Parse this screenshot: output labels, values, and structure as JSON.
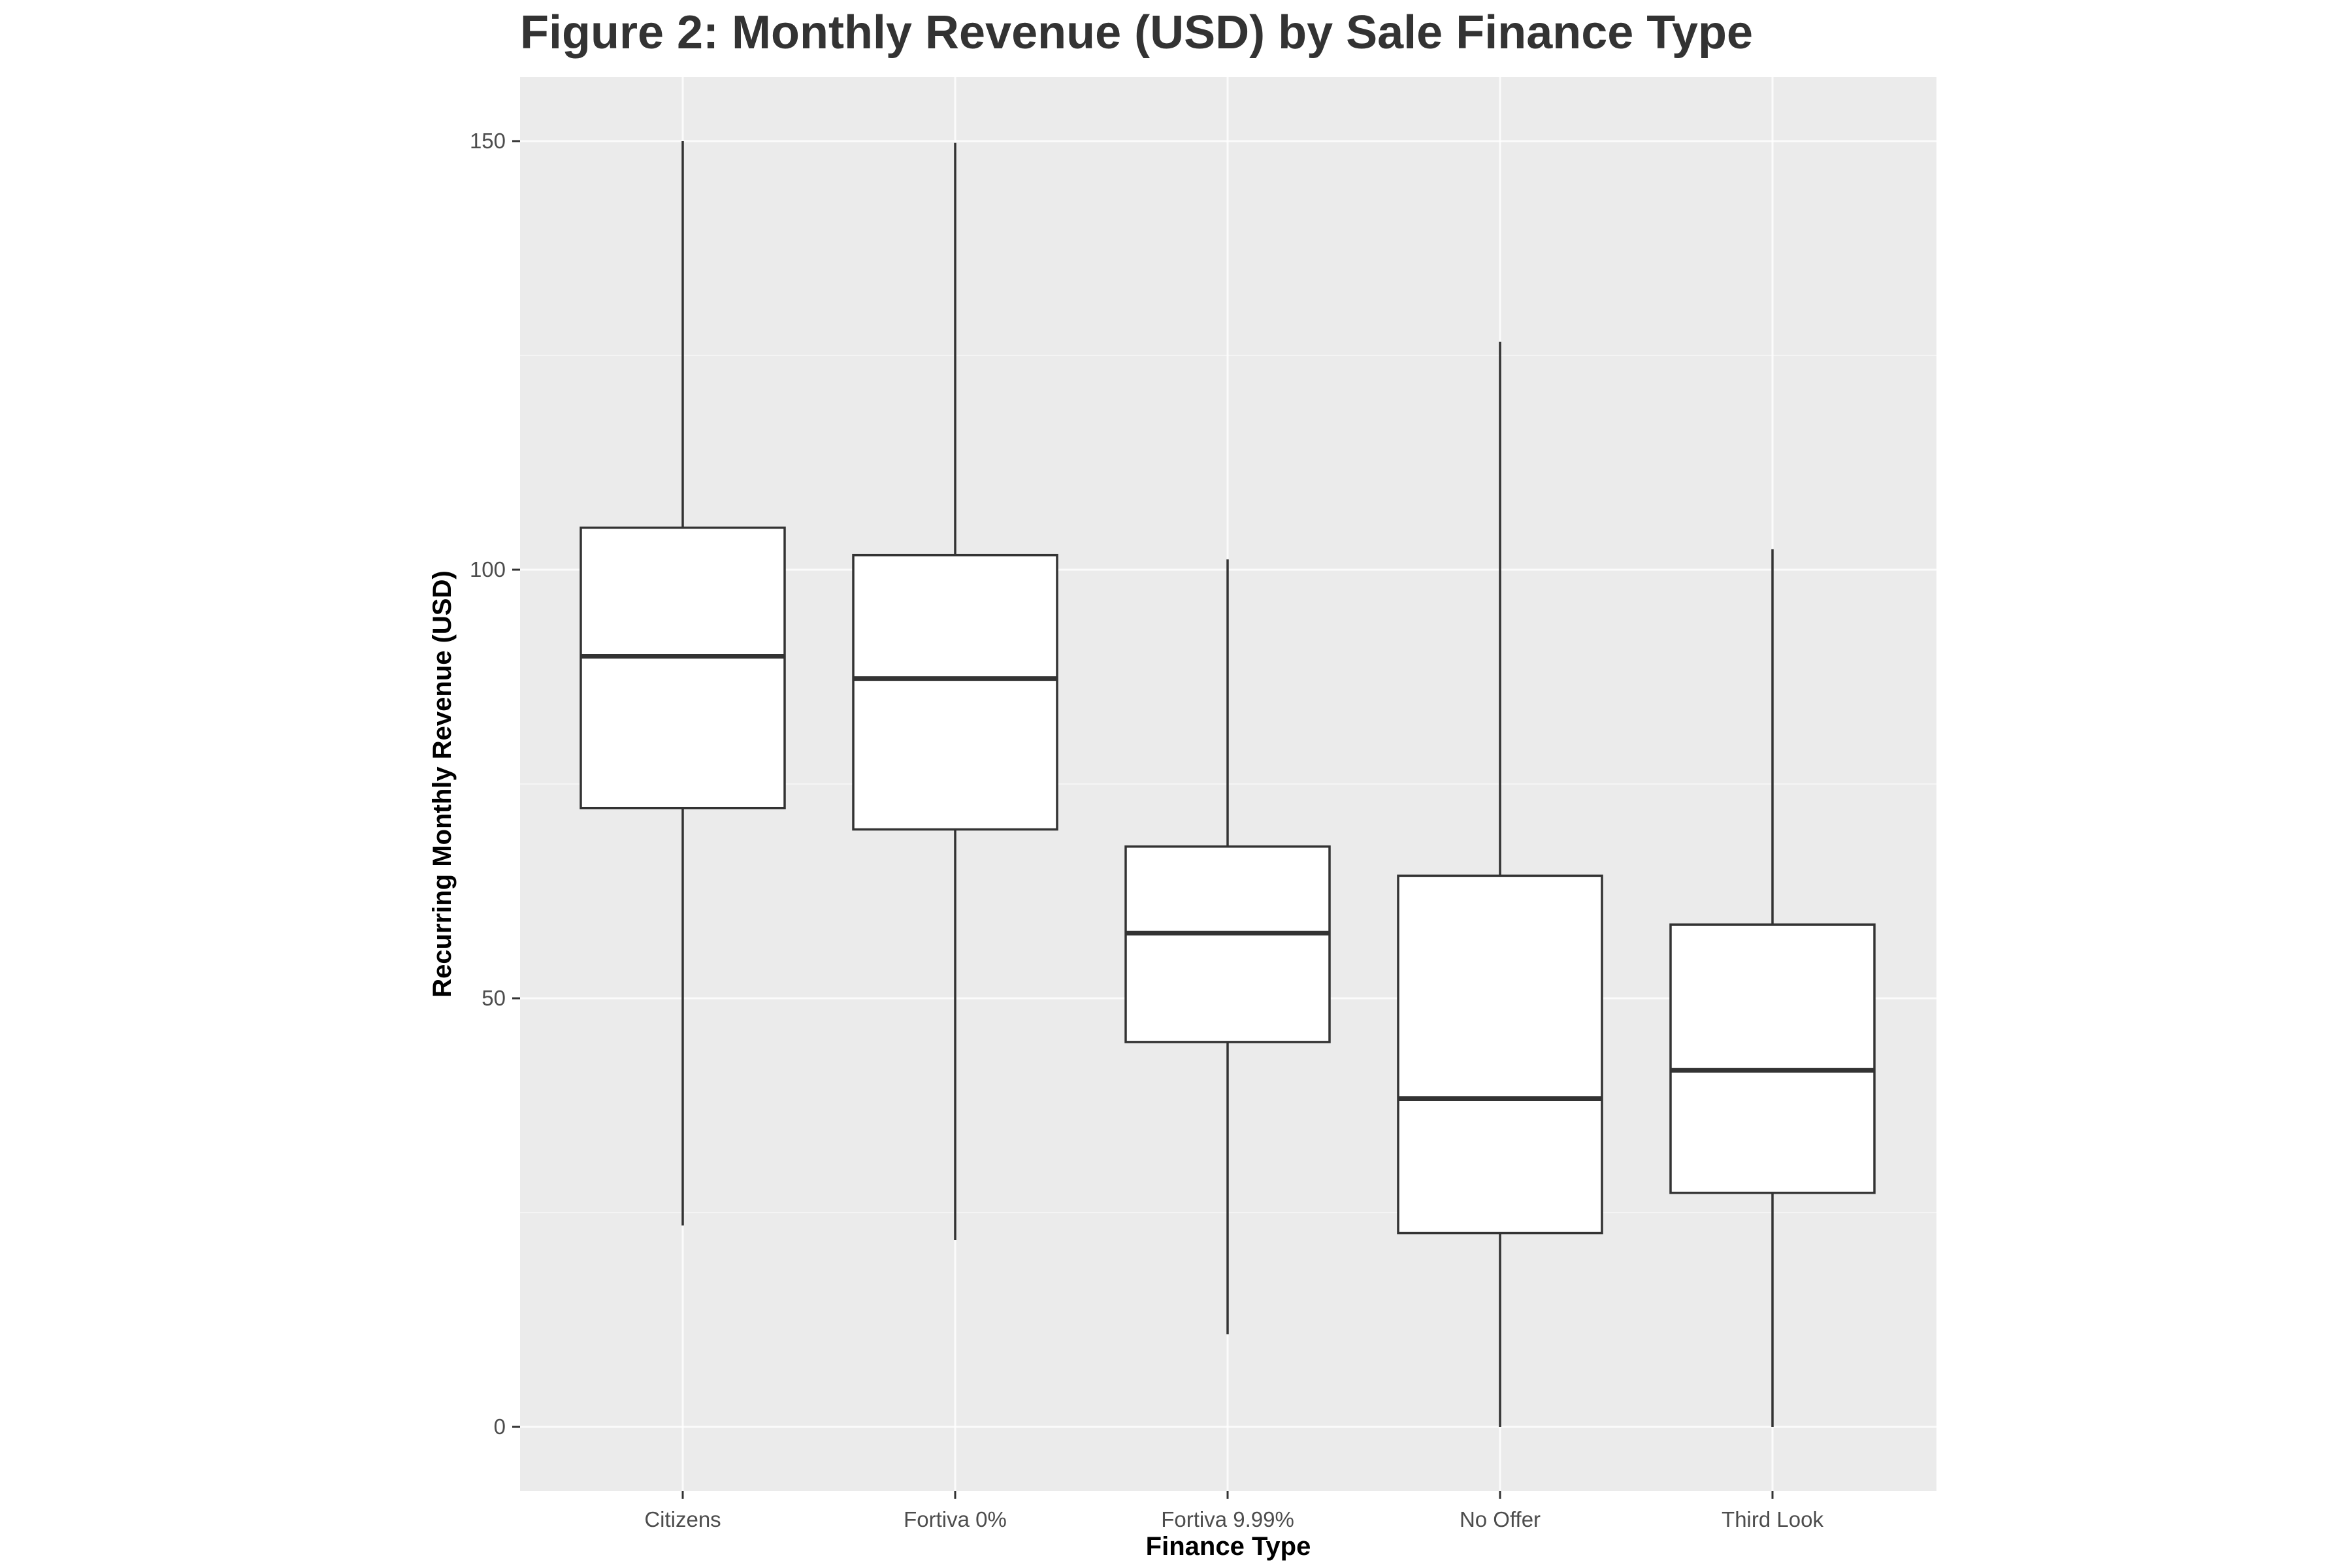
{
  "chart_data": {
    "type": "boxplot",
    "title": "Figure 2: Monthly Revenue (USD) by Sale Finance Type",
    "xlabel": "Finance Type",
    "ylabel": "Recurring Monthly Revenue (USD)",
    "ylim": [
      -7.5,
      157.5
    ],
    "yticks": [
      0,
      50,
      100,
      150
    ],
    "grid": true,
    "categories": [
      "Citizens",
      "Fortiva 0%",
      "Fortiva 9.99%",
      "No Offer",
      "Third Look"
    ],
    "boxes": [
      {
        "category": "Citizens",
        "whisker_low": 23.5,
        "q1": 72.2,
        "median": 89.9,
        "q3": 104.9,
        "whisker_high": 150
      },
      {
        "category": "Fortiva 0%",
        "whisker_low": 21.8,
        "q1": 69.7,
        "median": 87.3,
        "q3": 101.7,
        "whisker_high": 149.8
      },
      {
        "category": "Fortiva 9.99%",
        "whisker_low": 10.8,
        "q1": 44.9,
        "median": 57.6,
        "q3": 67.7,
        "whisker_high": 101.2
      },
      {
        "category": "No Offer",
        "whisker_low": 0,
        "q1": 22.6,
        "median": 38.3,
        "q3": 64.3,
        "whisker_high": 126.6
      },
      {
        "category": "Third Look",
        "whisker_low": 0,
        "q1": 27.3,
        "median": 41.6,
        "q3": 58.6,
        "whisker_high": 102.4
      }
    ],
    "colors": {
      "panel_background": "#ebebeb",
      "grid": "#ffffff",
      "box_fill": "#ffffff",
      "box_line": "#333333",
      "tick_label": "#4d4d4d",
      "title": "#333333"
    }
  }
}
